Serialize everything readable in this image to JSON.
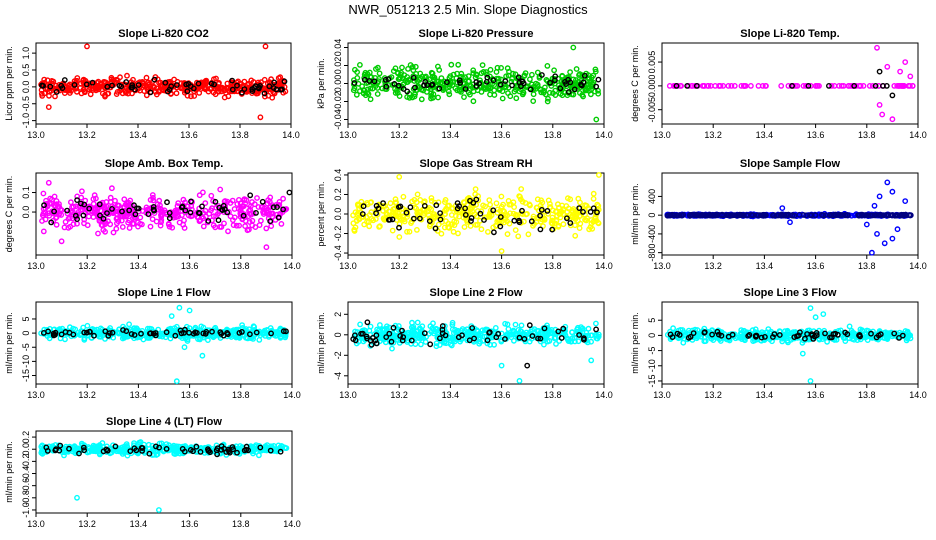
{
  "title": "NWR_051213  2.5 Min. Slope Diagnostics",
  "chart_data": [
    {
      "type": "scatter",
      "title": "Slope Li-820 CO2",
      "ylabel": "Licor ppm per min.",
      "xlim": [
        13.0,
        14.0
      ],
      "ylim": [
        -1.1,
        1.3
      ],
      "xticks": [
        13.0,
        13.2,
        13.4,
        13.6,
        13.8,
        14.0
      ],
      "yticks": [
        -1.0,
        -0.5,
        0.0,
        0.5,
        1.0
      ],
      "series": [
        {
          "color": "#ff0000",
          "n": 420,
          "spread": 0.18,
          "outliers": [
            [
              13.2,
              1.2
            ],
            [
              13.88,
              -0.9
            ],
            [
              13.9,
              1.2
            ],
            [
              13.05,
              -0.6
            ]
          ]
        },
        {
          "color": "#000000",
          "n": 55,
          "spread": 0.14,
          "outliers": []
        }
      ]
    },
    {
      "type": "scatter",
      "title": "Slope Li-820 Pressure",
      "ylabel": "kPa per min.",
      "xlim": [
        13.0,
        14.0
      ],
      "ylim": [
        -0.045,
        0.045
      ],
      "xticks": [
        13.0,
        13.2,
        13.4,
        13.6,
        13.8,
        14.0
      ],
      "yticks": [
        -0.04,
        -0.02,
        0.0,
        0.02,
        0.04
      ],
      "series": [
        {
          "color": "#00cc00",
          "n": 420,
          "spread": 0.012,
          "outliers": [
            [
              13.88,
              0.04
            ],
            [
              13.97,
              -0.04
            ],
            [
              13.78,
              -0.02
            ]
          ]
        },
        {
          "color": "#000000",
          "n": 55,
          "spread": 0.008,
          "outliers": []
        }
      ]
    },
    {
      "type": "scatter",
      "title": "Slope Li-820 Temp.",
      "ylabel": "degrees C per min.",
      "xlim": [
        13.0,
        14.0
      ],
      "ylim": [
        -0.008,
        0.009
      ],
      "xticks": [
        13.0,
        13.2,
        13.4,
        13.6,
        13.8,
        14.0
      ],
      "yticks": [
        -0.005,
        0.0,
        0.005
      ],
      "series": [
        {
          "color": "#ff00ff",
          "n": 90,
          "spread": 0.0,
          "outliers": [
            [
              13.84,
              0.008
            ],
            [
              13.86,
              -0.006
            ],
            [
              13.88,
              0.004
            ],
            [
              13.9,
              -0.007
            ],
            [
              13.95,
              0.005
            ],
            [
              13.93,
              0.003
            ],
            [
              13.85,
              -0.004
            ],
            [
              13.97,
              0.002
            ]
          ]
        },
        {
          "color": "#000000",
          "n": 10,
          "spread": 0.0,
          "outliers": [
            [
              13.85,
              0.003
            ],
            [
              13.9,
              -0.002
            ]
          ]
        }
      ]
    },
    {
      "type": "scatter",
      "title": "Slope Amb. Box Temp.",
      "ylabel": "degrees C per min.",
      "xlim": [
        13.0,
        14.0
      ],
      "ylim": [
        -0.22,
        0.2
      ],
      "xticks": [
        13.0,
        13.2,
        13.4,
        13.6,
        13.8,
        14.0
      ],
      "yticks": [
        0.0,
        0.1
      ],
      "series": [
        {
          "color": "#ff00ff",
          "n": 420,
          "spread": 0.06,
          "outliers": [
            [
              13.9,
              -0.18
            ],
            [
              13.05,
              0.15
            ],
            [
              13.1,
              -0.15
            ]
          ]
        },
        {
          "color": "#000000",
          "n": 55,
          "spread": 0.05,
          "outliers": [
            [
              13.99,
              0.1
            ]
          ]
        }
      ]
    },
    {
      "type": "scatter",
      "title": "Slope Gas Stream RH",
      "ylabel": "percent per min.",
      "xlim": [
        13.0,
        14.0
      ],
      "ylim": [
        -0.42,
        0.42
      ],
      "xticks": [
        13.0,
        13.2,
        13.4,
        13.6,
        13.8,
        14.0
      ],
      "yticks": [
        -0.4,
        -0.2,
        0.0,
        0.2,
        0.4
      ],
      "series": [
        {
          "color": "#ffff00",
          "n": 420,
          "spread": 0.13,
          "outliers": [
            [
              13.2,
              0.38
            ],
            [
              13.6,
              -0.38
            ],
            [
              13.98,
              0.4
            ]
          ]
        },
        {
          "color": "#000000",
          "n": 55,
          "spread": 0.12,
          "outliers": []
        }
      ]
    },
    {
      "type": "scatter",
      "title": "Slope Sample Flow",
      "ylabel": "ml/min per min.",
      "xlim": [
        13.0,
        14.0
      ],
      "ylim": [
        -850,
        900
      ],
      "xticks": [
        13.0,
        13.2,
        13.4,
        13.6,
        13.8,
        14.0
      ],
      "yticks": [
        -800,
        -400,
        0,
        400
      ],
      "series": [
        {
          "color": "#0000ff",
          "n": 300,
          "spread": 15,
          "outliers": [
            [
              13.82,
              -800
            ],
            [
              13.88,
              700
            ],
            [
              13.9,
              -500
            ],
            [
              13.85,
              400
            ],
            [
              13.92,
              -300
            ],
            [
              13.87,
              -600
            ],
            [
              13.95,
              300
            ],
            [
              13.8,
              -200
            ],
            [
              13.83,
              200
            ],
            [
              13.9,
              500
            ],
            [
              13.84,
              -400
            ],
            [
              13.47,
              150
            ],
            [
              13.5,
              -150
            ]
          ]
        },
        {
          "color": "#000080",
          "n": 200,
          "spread": 8,
          "outliers": []
        }
      ]
    },
    {
      "type": "scatter",
      "title": "Slope Line 1 Flow",
      "ylabel": "ml/min per min.",
      "xlim": [
        13.0,
        14.0
      ],
      "ylim": [
        -18,
        11
      ],
      "xticks": [
        13.0,
        13.2,
        13.4,
        13.6,
        13.8,
        14.0
      ],
      "yticks": [
        -15,
        -10,
        -5,
        0,
        5
      ],
      "series": [
        {
          "color": "#00ffff",
          "n": 420,
          "spread": 1.5,
          "outliers": [
            [
              13.55,
              -17
            ],
            [
              13.56,
              9
            ],
            [
              13.58,
              -5
            ],
            [
              13.6,
              8
            ],
            [
              13.53,
              6
            ],
            [
              13.65,
              -8
            ]
          ]
        },
        {
          "color": "#000000",
          "n": 55,
          "spread": 0.8,
          "outliers": []
        }
      ]
    },
    {
      "type": "scatter",
      "title": "Slope Line 2 Flow",
      "ylabel": "ml/min per min.",
      "xlim": [
        13.0,
        14.0
      ],
      "ylim": [
        -4.8,
        3.2
      ],
      "xticks": [
        13.0,
        13.2,
        13.4,
        13.6,
        13.8,
        14.0
      ],
      "yticks": [
        -4,
        -2,
        0,
        2
      ],
      "series": [
        {
          "color": "#00ffff",
          "n": 420,
          "spread": 0.7,
          "outliers": [
            [
              13.67,
              -4.5
            ],
            [
              13.6,
              -3
            ],
            [
              13.95,
              -2.5
            ]
          ]
        },
        {
          "color": "#000000",
          "n": 55,
          "spread": 0.6,
          "outliers": [
            [
              13.7,
              -3
            ]
          ]
        }
      ]
    },
    {
      "type": "scatter",
      "title": "Slope Line 3 Flow",
      "ylabel": "ml/min per min.",
      "xlim": [
        13.0,
        14.0
      ],
      "ylim": [
        -16,
        11
      ],
      "xticks": [
        13.0,
        13.2,
        13.4,
        13.6,
        13.8,
        14.0
      ],
      "yticks": [
        -15,
        -10,
        -5,
        0,
        5
      ],
      "series": [
        {
          "color": "#00ffff",
          "n": 420,
          "spread": 1.4,
          "outliers": [
            [
              13.58,
              -15
            ],
            [
              13.58,
              9
            ],
            [
              13.6,
              6
            ],
            [
              13.55,
              -6
            ],
            [
              13.63,
              7
            ]
          ]
        },
        {
          "color": "#000000",
          "n": 55,
          "spread": 0.8,
          "outliers": []
        }
      ]
    },
    {
      "type": "scatter",
      "title": "Slope Line 4 (LT) Flow",
      "ylabel": "ml/min per min.",
      "xlim": [
        13.0,
        14.0
      ],
      "ylim": [
        -1.05,
        0.3
      ],
      "xticks": [
        13.0,
        13.2,
        13.4,
        13.6,
        13.8,
        14.0
      ],
      "yticks": [
        -1.0,
        -0.8,
        -0.6,
        -0.4,
        -0.2,
        0.0,
        0.2
      ],
      "series": [
        {
          "color": "#00ffff",
          "n": 420,
          "spread": 0.06,
          "outliers": [
            [
              13.16,
              -0.8
            ],
            [
              13.48,
              -1.0
            ]
          ]
        },
        {
          "color": "#000000",
          "n": 55,
          "spread": 0.05,
          "outliers": []
        }
      ]
    }
  ]
}
